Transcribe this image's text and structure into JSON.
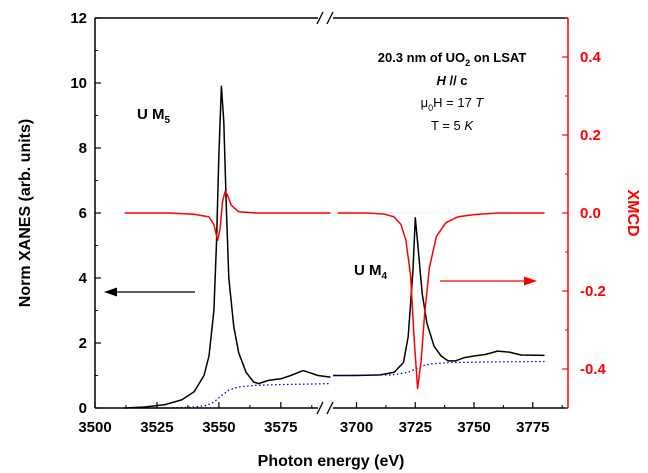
{
  "chart_data": {
    "type": "line",
    "title": "",
    "xlabel": "Photon energy (eV)",
    "ylabel_left": "Norm XANES (arb. units)",
    "ylabel_right": "XMCD",
    "colors": {
      "xanes": "#000000",
      "xmcd": "#ff0000",
      "step": "#0000cc",
      "right_axis": "#ff0000"
    },
    "x_segments": [
      {
        "xlim": [
          3500,
          3590
        ],
        "ticks": [
          "3500",
          "3525",
          "3550",
          "3575"
        ],
        "tick_values": [
          3500,
          3525,
          3550,
          3575
        ]
      },
      {
        "xlim": [
          3690,
          3790
        ],
        "ticks": [
          "3700",
          "3725",
          "3750",
          "3775"
        ],
        "tick_values": [
          3700,
          3725,
          3750,
          3775
        ]
      }
    ],
    "ylim_left": [
      0,
      12
    ],
    "yticks_left": [
      "0",
      "2",
      "4",
      "6",
      "8",
      "10",
      "12"
    ],
    "ylim_right": [
      -0.5,
      0.5
    ],
    "yticks_right": [
      "-0.4",
      "-0.2",
      "0.0",
      "0.2",
      "0.4"
    ],
    "yticks_right_values": [
      -0.4,
      -0.2,
      0.0,
      0.2,
      0.4
    ],
    "annotations": {
      "sample_line1": "20.3 nm of UO",
      "sample_sub": "2",
      "sample_line1_end": " on LSAT",
      "field_dir_H": "H",
      "field_dir_rest": " // c",
      "field_mu": "μ",
      "field_sub": "0",
      "field_rest": "H = 17 ",
      "field_unit": "T",
      "temp": "T = 5 ",
      "temp_unit": "K",
      "m5_label": "U M",
      "m5_sub": "5",
      "m4_label": "U M",
      "m4_sub": "4"
    },
    "series": [
      {
        "axis": "left",
        "segment": 0,
        "x": [
          3512,
          3520,
          3528,
          3535,
          3540,
          3544,
          3546,
          3548,
          3549,
          3550,
          3551,
          3552,
          3553,
          3554,
          3556,
          3558,
          3561,
          3564,
          3566,
          3570,
          3575,
          3579,
          3584,
          3590,
          3595
        ],
        "y": [
          0.0,
          0.03,
          0.1,
          0.25,
          0.5,
          1.0,
          1.6,
          3.0,
          5.0,
          7.8,
          9.9,
          8.8,
          6.2,
          4.0,
          2.5,
          1.7,
          1.1,
          0.8,
          0.75,
          0.85,
          0.9,
          1.0,
          1.15,
          1.0,
          0.95
        ]
      },
      {
        "axis": "left",
        "segment": 1,
        "x": [
          3690,
          3700,
          3710,
          3716,
          3720,
          3722,
          3724,
          3725,
          3726,
          3727,
          3728,
          3730,
          3733,
          3736,
          3739,
          3742,
          3746,
          3750,
          3755,
          3760,
          3765,
          3770,
          3780
        ],
        "y": [
          1.0,
          1.0,
          1.02,
          1.1,
          1.4,
          2.2,
          4.2,
          5.85,
          5.1,
          4.3,
          3.5,
          2.6,
          1.9,
          1.6,
          1.45,
          1.45,
          1.55,
          1.6,
          1.65,
          1.75,
          1.72,
          1.63,
          1.62
        ]
      },
      {
        "axis": "left",
        "segment": 0,
        "style": "dotted",
        "x": [
          3512,
          3530,
          3540,
          3545,
          3548,
          3551,
          3554,
          3558,
          3565,
          3575,
          3590,
          3595
        ],
        "y": [
          0.0,
          0.0,
          0.03,
          0.08,
          0.18,
          0.38,
          0.55,
          0.65,
          0.7,
          0.72,
          0.74,
          0.75
        ]
      },
      {
        "axis": "left",
        "segment": 1,
        "style": "dotted",
        "x": [
          3690,
          3715,
          3722,
          3725,
          3728,
          3732,
          3740,
          3760,
          3780
        ],
        "y": [
          1.0,
          1.02,
          1.1,
          1.2,
          1.3,
          1.36,
          1.4,
          1.42,
          1.43
        ]
      },
      {
        "axis": "right",
        "segment": 0,
        "x": [
          3512,
          3530,
          3540,
          3546,
          3548,
          3549.5,
          3550.5,
          3551.5,
          3552.5,
          3553.5,
          3555,
          3558,
          3565,
          3580,
          3595
        ],
        "y": [
          0.0,
          0.0,
          -0.003,
          -0.01,
          -0.03,
          -0.07,
          -0.04,
          0.03,
          0.055,
          0.045,
          0.02,
          0.003,
          0.0,
          0.0,
          0.0
        ]
      },
      {
        "axis": "right",
        "segment": 1,
        "x": [
          3692,
          3705,
          3712,
          3716,
          3719,
          3721,
          3723,
          3724.5,
          3726,
          3727.5,
          3729,
          3731,
          3734,
          3738,
          3743,
          3750,
          3760,
          3770,
          3780
        ],
        "y": [
          0.0,
          0.0,
          -0.003,
          -0.01,
          -0.03,
          -0.07,
          -0.16,
          -0.32,
          -0.45,
          -0.38,
          -0.26,
          -0.14,
          -0.06,
          -0.025,
          -0.01,
          -0.004,
          0.0,
          0.0,
          0.0
        ]
      }
    ]
  }
}
